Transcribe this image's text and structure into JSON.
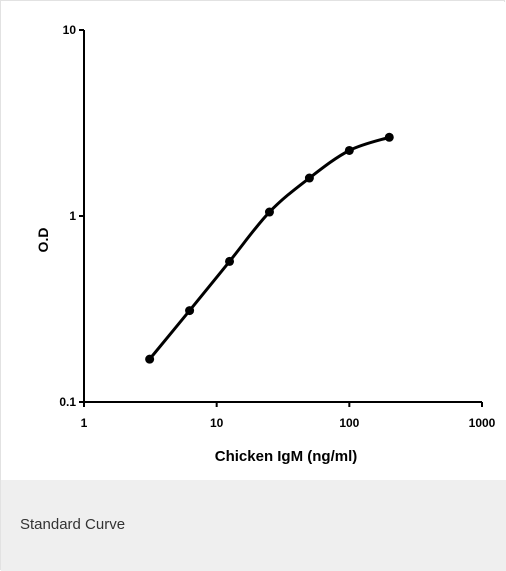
{
  "caption": "Standard Curve",
  "chart_data": {
    "type": "line",
    "title": "",
    "xlabel": "Chicken IgM (ng/ml)",
    "ylabel": "O.D",
    "xscale": "log",
    "yscale": "log",
    "xlim": [
      1,
      1000
    ],
    "ylim": [
      0.1,
      10
    ],
    "x_ticks": [
      "1",
      "10",
      "100",
      "1000"
    ],
    "y_ticks": [
      "0.1",
      "1",
      "10"
    ],
    "grid": false,
    "series": [
      {
        "x": [
          3.125,
          6.25,
          12.5,
          25,
          50,
          100,
          200
        ],
        "y": [
          0.17,
          0.31,
          0.57,
          1.05,
          1.6,
          2.25,
          2.65
        ]
      }
    ],
    "colors": {
      "line": "#000000",
      "marker": "#000000",
      "axis": "#000000"
    }
  }
}
